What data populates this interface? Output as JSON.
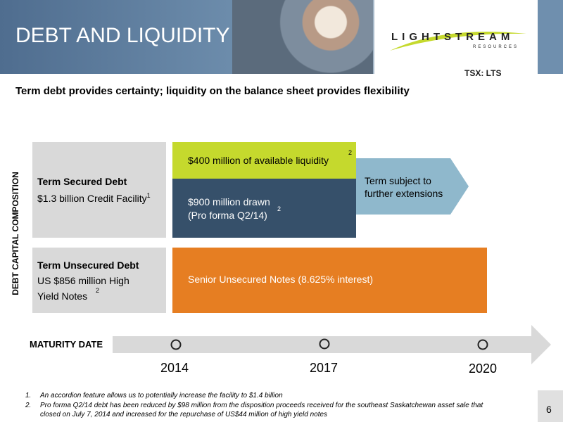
{
  "header": {
    "title": "DEBT AND LIQUIDITY",
    "logo": {
      "name": "LIGHTSTREAM",
      "subtitle": "RESOURCES"
    },
    "ticker": "TSX: LTS"
  },
  "subtitle": "Term debt provides certainty; liquidity on the balance sheet provides flexibility",
  "axis_label": "DEBT CAPITAL COMPOSITION",
  "rows": [
    {
      "title": "Term Secured Debt",
      "text": "$1.3 billion Credit Facility",
      "note": "1",
      "blocks": [
        {
          "text": "$400 million of available liquidity",
          "note": "2"
        },
        {
          "lines": [
            "$900 million drawn",
            "(Pro forma Q2/14)"
          ],
          "note": "2"
        }
      ],
      "arrow": [
        "Term subject to",
        "further extensions"
      ]
    },
    {
      "title": "Term Unsecured Debt",
      "lines": [
        "US $856 million High",
        "Yield Notes"
      ],
      "note": "2",
      "block": "Senior Unsecured Notes (8.625% interest)"
    }
  ],
  "timeline": {
    "label": "MATURITY DATE",
    "years": [
      "2014",
      "2017",
      "2020"
    ]
  },
  "footnotes": [
    {
      "number": "1.",
      "lines": [
        "An accordion feature allows us to potentially increase the facility to $1.4 billion"
      ]
    },
    {
      "number": "2.",
      "lines": [
        "Pro forma Q2/14 debt has been reduced by $98 million from the disposition proceeds received for the southeast Saskatchewan asset sale that",
        "closed on July 7, 2014 and increased for the repurchase of US$44 million of high yield notes"
      ]
    }
  ],
  "page_number": "6"
}
